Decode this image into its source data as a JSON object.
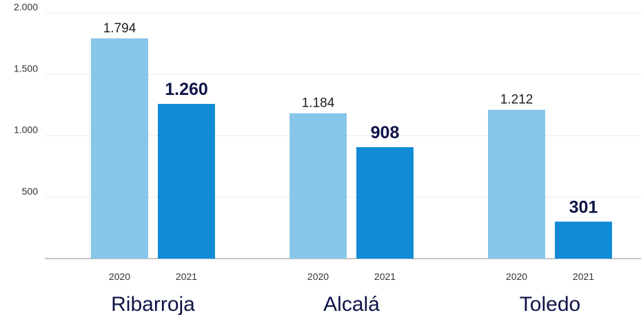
{
  "chart_data": {
    "type": "bar",
    "title": "",
    "xlabel": "",
    "ylabel": "",
    "ylim": [
      0,
      2000
    ],
    "yticks": [
      {
        "value": 500,
        "label": "500"
      },
      {
        "value": 1000,
        "label": "1.000"
      },
      {
        "value": 1500,
        "label": "1.500"
      },
      {
        "value": 2000,
        "label": "2.000"
      }
    ],
    "grid": true,
    "legend": "none",
    "groups": [
      {
        "name": "Ribarroja",
        "bars": [
          {
            "year": "2020",
            "value": 1794,
            "label": "1.794",
            "highlight": false
          },
          {
            "year": "2021",
            "value": 1260,
            "label": "1.260",
            "highlight": true
          }
        ]
      },
      {
        "name": "Alcalá",
        "bars": [
          {
            "year": "2020",
            "value": 1184,
            "label": "1.184",
            "highlight": false
          },
          {
            "year": "2021",
            "value": 908,
            "label": "908",
            "highlight": true
          }
        ]
      },
      {
        "name": "Toledo",
        "bars": [
          {
            "year": "2020",
            "value": 1212,
            "label": "1.212",
            "highlight": false
          },
          {
            "year": "2021",
            "value": 301,
            "label": "301",
            "highlight": true
          }
        ]
      }
    ],
    "colors": {
      "bar_2020": "#88c6e9",
      "bar_2021": "#118bd6",
      "label_normal": "#1c1c1c",
      "label_highlight": "#0e1446",
      "grid": "#e9e9ee",
      "axis": "#8a8a8a",
      "tick_text": "#333333",
      "group_text": "#0e1446"
    }
  }
}
